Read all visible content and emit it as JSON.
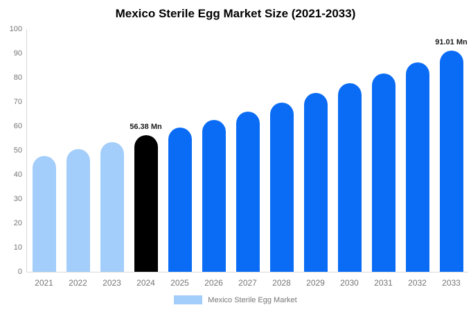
{
  "title": "Mexico Sterile Egg Market Size (2021-2033)",
  "legend": {
    "label": "Mexico Sterile Egg Market",
    "swatch_color": "#a3cdfa"
  },
  "colors": {
    "historical": "#a3cdfa",
    "base_year": "#000000",
    "forecast": "#0a6cf5",
    "axis_line": "#d9d9d9",
    "axis_text": "#757575"
  },
  "chart_data": {
    "type": "bar",
    "title": "Mexico Sterile Egg Market Size (2021-2033)",
    "categories": [
      "2021",
      "2022",
      "2023",
      "2024",
      "2025",
      "2026",
      "2027",
      "2028",
      "2029",
      "2030",
      "2031",
      "2032",
      "2033"
    ],
    "values": [
      47.7,
      50.5,
      53.4,
      56.38,
      59.5,
      62.7,
      66.1,
      69.8,
      73.6,
      77.6,
      81.8,
      86.3,
      91.01
    ],
    "unit": "Mn",
    "xlabel": "",
    "ylabel": "",
    "ylim": [
      0,
      100
    ],
    "y_ticks": [
      0,
      10,
      20,
      30,
      40,
      50,
      60,
      70,
      80,
      90,
      100
    ],
    "grid": false,
    "legend_position": "bottom",
    "bar_roles": [
      "historical",
      "historical",
      "historical",
      "base_year",
      "forecast",
      "forecast",
      "forecast",
      "forecast",
      "forecast",
      "forecast",
      "forecast",
      "forecast",
      "forecast"
    ],
    "annotations": [
      {
        "category": "2024",
        "text": "56.38 Mn"
      },
      {
        "category": "2033",
        "text": "91.01 Mn"
      }
    ]
  }
}
